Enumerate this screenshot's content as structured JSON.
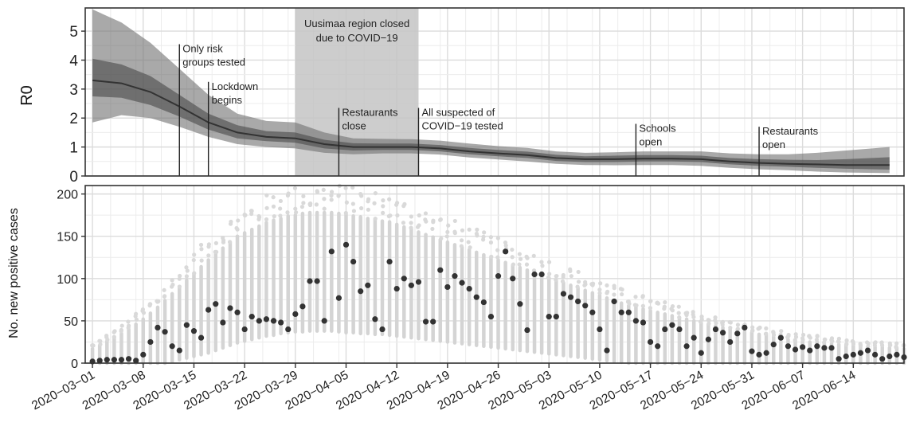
{
  "chart_data": [
    {
      "type": "line",
      "panel": "top",
      "xlabel": "",
      "ylabel": "R0",
      "ylim": [
        0,
        5.8
      ],
      "y_ticks": [
        0,
        1,
        2,
        3,
        4,
        5
      ],
      "grid": true,
      "shaded_period": {
        "start": "2020-03-29",
        "end": "2020-04-15",
        "label_lines": [
          "Uusimaa region closed",
          "due to COVID−19"
        ]
      },
      "annotations": [
        {
          "date": "2020-03-13",
          "lines": [
            "Only risk",
            "groups tested"
          ],
          "line_top": 4.55
        },
        {
          "date": "2020-03-17",
          "lines": [
            "Lockdown",
            "begins"
          ],
          "line_top": 3.25
        },
        {
          "date": "2020-04-04",
          "lines": [
            "Restaurants",
            "close"
          ],
          "line_top": 2.35
        },
        {
          "date": "2020-04-15",
          "lines": [
            "All suspected of",
            "COVID−19 tested"
          ],
          "line_top": 2.35
        },
        {
          "date": "2020-05-15",
          "lines": [
            "Schools",
            "open"
          ],
          "line_top": 1.8
        },
        {
          "date": "2020-06-01",
          "lines": [
            "Restaurants",
            "open"
          ],
          "line_top": 1.7
        }
      ],
      "series": [
        {
          "x": [
            "2020-03-01",
            "2020-03-05",
            "2020-03-09",
            "2020-03-13",
            "2020-03-17",
            "2020-03-21",
            "2020-03-25",
            "2020-03-29",
            "2020-04-02",
            "2020-04-06",
            "2020-04-10",
            "2020-04-14",
            "2020-04-18",
            "2020-04-22",
            "2020-04-26",
            "2020-04-30",
            "2020-05-04",
            "2020-05-08",
            "2020-05-12",
            "2020-05-16",
            "2020-05-20",
            "2020-05-24",
            "2020-05-28",
            "2020-06-01",
            "2020-06-05",
            "2020-06-09",
            "2020-06-13",
            "2020-06-19"
          ],
          "median": [
            3.3,
            3.2,
            2.9,
            2.4,
            1.85,
            1.5,
            1.35,
            1.3,
            1.1,
            1.0,
            1.0,
            1.0,
            0.95,
            0.85,
            0.78,
            0.72,
            0.62,
            0.58,
            0.58,
            0.6,
            0.6,
            0.58,
            0.5,
            0.45,
            0.42,
            0.4,
            0.38,
            0.38
          ],
          "inner_lower": [
            2.75,
            2.7,
            2.45,
            2.05,
            1.6,
            1.3,
            1.2,
            1.15,
            0.95,
            0.88,
            0.9,
            0.9,
            0.85,
            0.75,
            0.68,
            0.62,
            0.52,
            0.48,
            0.48,
            0.5,
            0.5,
            0.48,
            0.4,
            0.35,
            0.32,
            0.28,
            0.25,
            0.22
          ],
          "inner_upper": [
            4.05,
            3.85,
            3.45,
            2.8,
            2.15,
            1.75,
            1.55,
            1.5,
            1.25,
            1.13,
            1.12,
            1.12,
            1.07,
            0.97,
            0.9,
            0.84,
            0.73,
            0.68,
            0.7,
            0.72,
            0.72,
            0.7,
            0.62,
            0.58,
            0.56,
            0.55,
            0.58,
            0.65
          ],
          "outer_lower": [
            1.85,
            2.1,
            2.0,
            1.7,
            1.35,
            1.1,
            1.0,
            0.95,
            0.8,
            0.75,
            0.78,
            0.78,
            0.74,
            0.64,
            0.57,
            0.5,
            0.42,
            0.38,
            0.37,
            0.38,
            0.38,
            0.35,
            0.28,
            0.23,
            0.2,
            0.15,
            0.12,
            0.1
          ],
          "outer_upper": [
            5.75,
            5.3,
            4.6,
            3.7,
            2.8,
            2.15,
            1.9,
            1.85,
            1.5,
            1.3,
            1.28,
            1.27,
            1.22,
            1.12,
            1.03,
            0.97,
            0.85,
            0.8,
            0.82,
            0.85,
            0.85,
            0.85,
            0.78,
            0.75,
            0.75,
            0.8,
            0.88,
            1.0
          ]
        }
      ]
    },
    {
      "type": "scatter",
      "panel": "bottom",
      "xlabel": "",
      "ylabel": "No. new positive cases",
      "ylim": [
        0,
        210
      ],
      "y_ticks": [
        0,
        50,
        100,
        150,
        200
      ],
      "grid": true,
      "x_range": [
        "2020-02-29",
        "2020-06-21"
      ],
      "x_ticks": [
        "2020-03-01",
        "2020-03-08",
        "2020-03-15",
        "2020-03-22",
        "2020-03-29",
        "2020-04-05",
        "2020-04-12",
        "2020-04-19",
        "2020-04-26",
        "2020-05-03",
        "2020-05-10",
        "2020-05-17",
        "2020-05-24",
        "2020-05-31",
        "2020-06-07",
        "2020-06-14"
      ],
      "series": [
        {
          "kind": "observed",
          "color": "#333333",
          "start_date": "2020-03-01",
          "values": [
            2,
            3,
            4,
            4,
            4,
            5,
            3,
            10,
            25,
            42,
            37,
            20,
            15,
            45,
            38,
            30,
            63,
            70,
            48,
            65,
            60,
            40,
            55,
            50,
            52,
            50,
            48,
            40,
            58,
            67,
            97,
            97,
            50,
            132,
            77,
            140,
            120,
            85,
            92,
            52,
            40,
            120,
            88,
            100,
            92,
            96,
            49,
            49,
            110,
            90,
            103,
            95,
            88,
            78,
            72,
            55,
            103,
            132,
            100,
            70,
            39,
            105,
            105,
            55,
            55,
            82,
            78,
            73,
            68,
            60,
            40,
            15,
            73,
            60,
            60,
            50,
            48,
            25,
            20,
            40,
            45,
            40,
            20,
            30,
            12,
            28,
            40,
            36,
            25,
            35,
            42,
            14,
            10,
            12,
            22,
            30,
            20,
            16,
            19,
            15,
            20,
            18,
            18,
            5,
            8,
            10,
            12,
            15,
            10,
            5,
            8,
            10,
            7,
            5,
            9
          ],
          "first_dates_note": ""
        },
        {
          "kind": "simulated-spread",
          "color": "#d4d4d4",
          "start_date": "2020-03-01",
          "center": [
            5,
            7,
            10,
            12,
            15,
            18,
            21,
            24,
            28,
            32,
            37,
            42,
            47,
            52,
            57,
            62,
            67,
            72,
            77,
            82,
            87,
            90,
            93,
            96,
            99,
            101,
            103,
            105,
            106,
            107,
            108,
            108,
            108,
            108,
            107,
            106,
            105,
            104,
            103,
            102,
            101,
            100,
            98,
            96,
            94,
            92,
            90,
            88,
            86,
            84,
            82,
            80,
            78,
            76,
            74,
            72,
            70,
            68,
            66,
            64,
            62,
            60,
            58,
            56,
            54,
            52,
            50,
            48,
            46,
            44,
            42,
            40,
            38,
            36,
            34,
            33,
            32,
            31,
            30,
            29,
            28,
            27,
            26,
            25,
            24,
            23,
            22,
            21,
            20,
            19,
            18,
            17,
            16,
            15,
            14,
            13,
            12,
            11,
            11,
            10,
            10,
            9,
            9,
            8,
            8,
            8,
            7,
            7,
            7,
            7,
            6,
            6,
            6,
            6,
            6
          ],
          "half_width": [
            12,
            14,
            16,
            18,
            20,
            22,
            25,
            28,
            31,
            34,
            37,
            40,
            43,
            46,
            49,
            52,
            55,
            57,
            59,
            61,
            63,
            64,
            65,
            66,
            67,
            68,
            68,
            69,
            69,
            70,
            70,
            70,
            70,
            70,
            70,
            70,
            69,
            69,
            68,
            68,
            67,
            67,
            66,
            65,
            64,
            63,
            62,
            61,
            60,
            59,
            58,
            57,
            56,
            55,
            54,
            53,
            52,
            51,
            50,
            49,
            48,
            47,
            46,
            45,
            44,
            43,
            42,
            41,
            40,
            39,
            38,
            37,
            36,
            35,
            34,
            33,
            32,
            31,
            30,
            29,
            28,
            27,
            26,
            25,
            24,
            23,
            22,
            21,
            20,
            20,
            19,
            19,
            18,
            18,
            17,
            17,
            16,
            16,
            15,
            15,
            15,
            14,
            14,
            14,
            13,
            13,
            13,
            12,
            12,
            12,
            12,
            12,
            11,
            11,
            11
          ]
        }
      ]
    }
  ]
}
